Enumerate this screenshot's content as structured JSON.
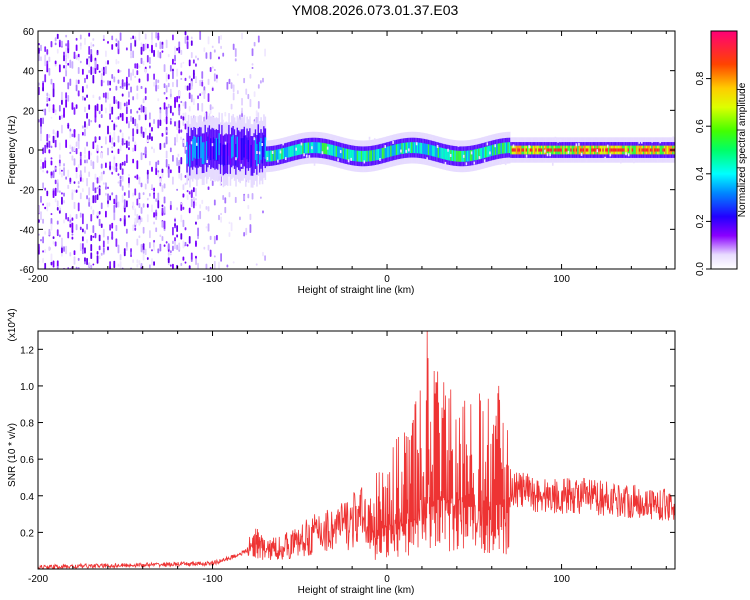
{
  "title": "YM08.2026.073.01.37.E03",
  "chart_data": [
    {
      "type": "heatmap",
      "title": "YM08.2026.073.01.37.E03",
      "xlabel": "Height of straight line (km)",
      "ylabel": "Frequency (Hz)",
      "xlim": [
        -200,
        165
      ],
      "ylim": [
        -60,
        60
      ],
      "x_ticks": [
        -200,
        -100,
        0,
        100
      ],
      "y_ticks": [
        60,
        40,
        20,
        0,
        -20,
        -40,
        -60
      ],
      "x_tick_labels": [
        "-200",
        "-100",
        "0",
        "100"
      ],
      "y_tick_labels": [
        "60",
        "40",
        "20",
        "0",
        "-20",
        "-40",
        "-60"
      ],
      "grid": false,
      "colorbar": {
        "label": "Normalized spectral amplitude",
        "range": [
          0,
          1
        ],
        "ticks": [
          0.0,
          0.2,
          0.4,
          0.6,
          0.8
        ],
        "tick_labels": [
          "0.0",
          "0.2",
          "0.4",
          "0.6",
          "0.8"
        ],
        "colormap": "rainbow"
      },
      "features": {
        "noise_region_x": [
          -200,
          -70
        ],
        "signal_start_x": -115,
        "signal_center_frequency": 0,
        "signal_peak_region_x": [
          70,
          165
        ]
      }
    },
    {
      "type": "line",
      "xlabel": "Height of straight line (km)",
      "ylabel": "SNR (10 * v/v)",
      "y_multiplier_label": "(x10^4)",
      "xlim": [
        -200,
        165
      ],
      "ylim": [
        0,
        1.3
      ],
      "x_ticks": [
        -200,
        -100,
        0,
        100
      ],
      "y_ticks": [
        0.2,
        0.4,
        0.6,
        0.8,
        1.0,
        1.2
      ],
      "x_tick_labels": [
        "-200",
        "-100",
        "0",
        "100"
      ],
      "y_tick_labels": [
        "0.2",
        "0.4",
        "0.6",
        "0.8",
        "1.0",
        "1.2"
      ],
      "grid": false,
      "color": "#ee3333",
      "series": [
        {
          "x": [
            -200,
            -150,
            -100,
            -90,
            -80,
            -75,
            -70,
            -60,
            -50,
            -40,
            -30,
            -20,
            -10,
            0,
            10,
            20,
            25,
            30,
            40,
            50,
            60,
            65,
            70,
            80,
            90,
            100,
            110,
            120,
            130,
            140,
            150,
            160,
            165
          ],
          "values": [
            0.01,
            0.02,
            0.03,
            0.06,
            0.1,
            0.15,
            0.1,
            0.12,
            0.15,
            0.2,
            0.22,
            0.26,
            0.3,
            0.38,
            0.45,
            0.6,
            0.75,
            0.62,
            0.6,
            0.58,
            0.55,
            0.58,
            0.45,
            0.42,
            0.4,
            0.4,
            0.4,
            0.39,
            0.38,
            0.37,
            0.36,
            0.35,
            0.35
          ],
          "spikes": [
            {
              "x": 23,
              "value": 1.3
            },
            {
              "x": 64,
              "value": 1.0
            },
            {
              "x": 16,
              "value": 0.9
            },
            {
              "x": 48,
              "value": 0.9
            }
          ]
        }
      ]
    }
  ]
}
